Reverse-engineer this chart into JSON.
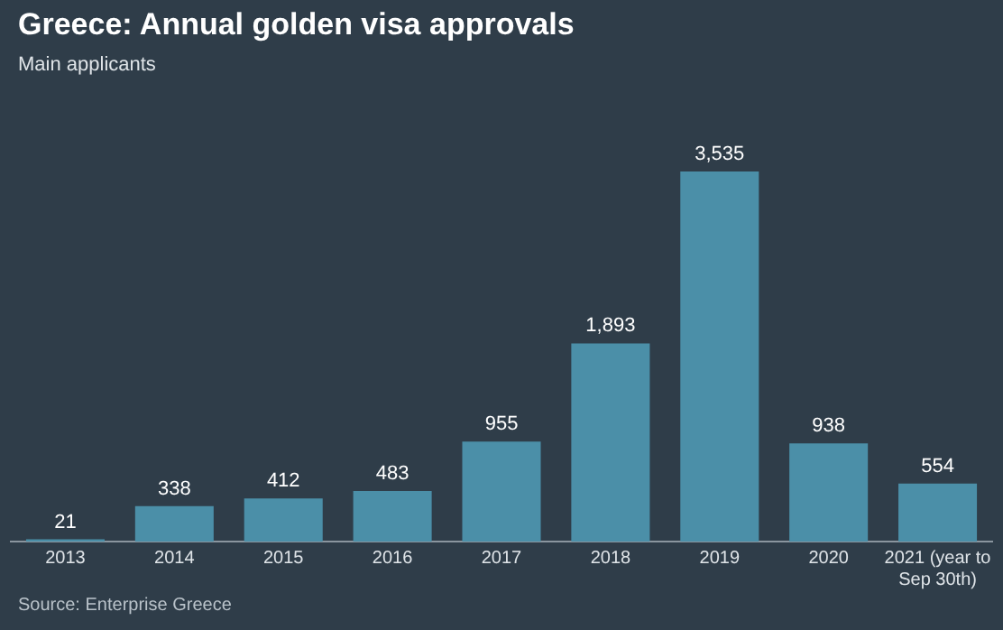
{
  "chart_data": {
    "type": "bar",
    "title": "Greece: Annual golden visa approvals",
    "subtitle": "Main applicants",
    "categories": [
      "2013",
      "2014",
      "2015",
      "2016",
      "2017",
      "2018",
      "2019",
      "2020",
      "2021 (year to Sep 30th)"
    ],
    "values": [
      21,
      338,
      412,
      483,
      955,
      1893,
      3535,
      938,
      554
    ],
    "value_labels": [
      "21",
      "338",
      "412",
      "483",
      "955",
      "1,893",
      "3,535",
      "938",
      "554"
    ],
    "color": "#4b8fa8",
    "grid": false,
    "legend": false,
    "tick_labels": "x",
    "annotations": [
      "Source: Enterprise Greece"
    ]
  }
}
